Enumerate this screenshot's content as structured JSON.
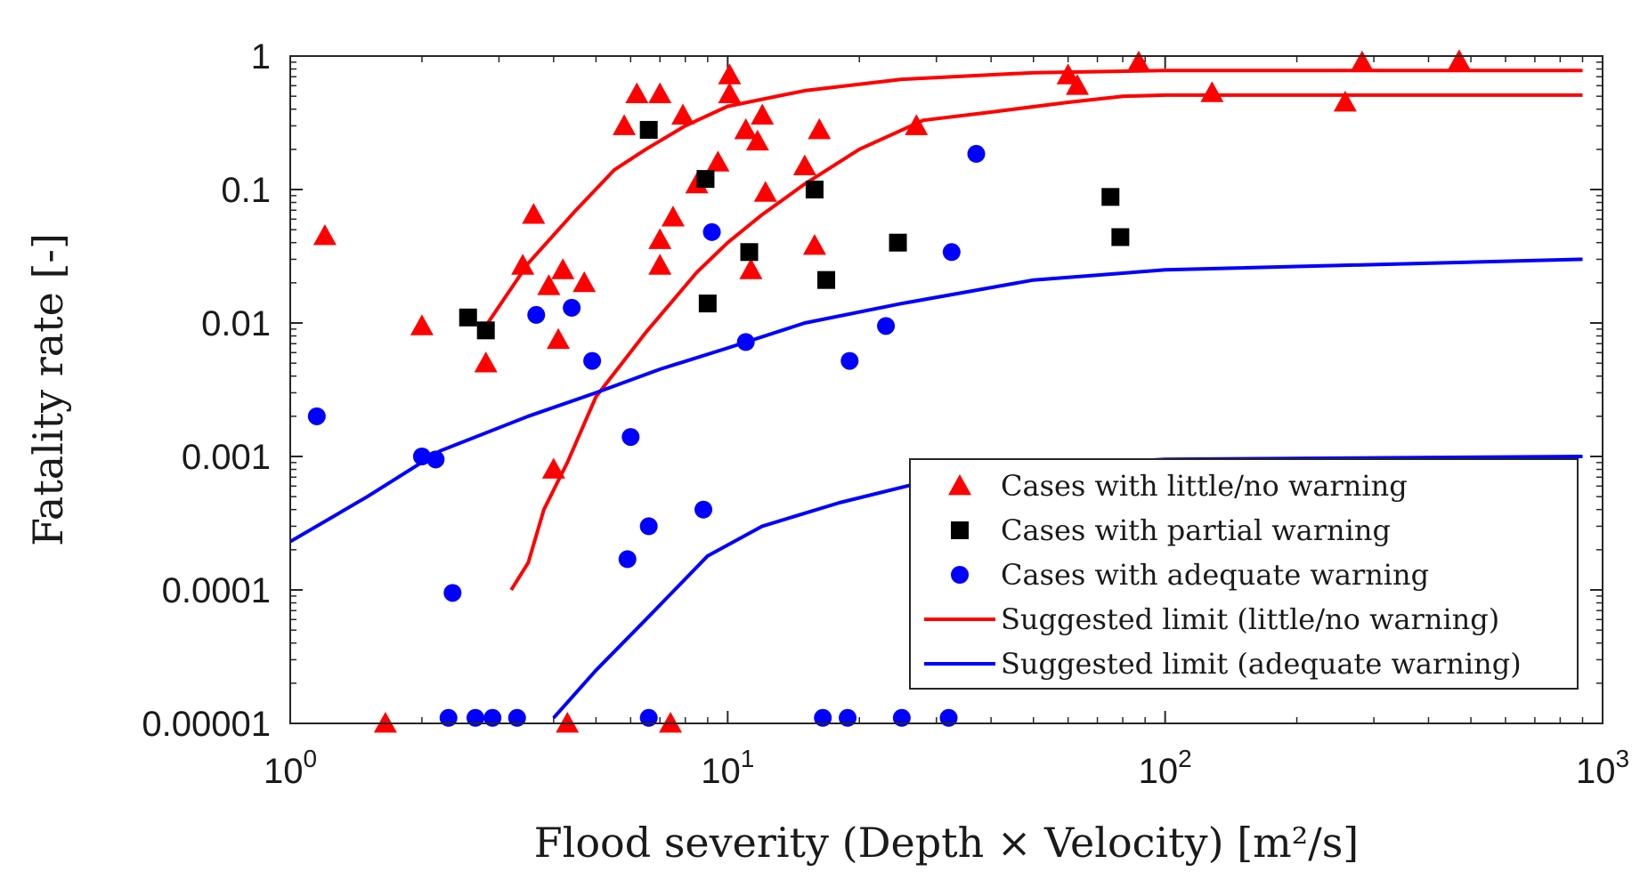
{
  "chart_data": {
    "type": "scatter",
    "xscale": "log",
    "yscale": "log",
    "xlim": [
      1,
      1000
    ],
    "ylim": [
      1e-05,
      1
    ],
    "xlabel": "Flood severity (Depth × Velocity) [m²/s]",
    "ylabel": "Fatality rate [-]",
    "x_ticks": [
      {
        "value": 1,
        "base": "10",
        "exp": "0"
      },
      {
        "value": 10,
        "base": "10",
        "exp": "1"
      },
      {
        "value": 100,
        "base": "10",
        "exp": "2"
      },
      {
        "value": 1000,
        "base": "10",
        "exp": "3"
      }
    ],
    "y_ticks": [
      {
        "value": 1,
        "label": "1"
      },
      {
        "value": 0.1,
        "label": "0.1"
      },
      {
        "value": 0.01,
        "label": "0.01"
      },
      {
        "value": 0.001,
        "label": "0.001"
      },
      {
        "value": 0.0001,
        "label": "0.0001"
      },
      {
        "value": 1e-05,
        "label": "0.00001"
      }
    ],
    "legend_position": "bottom-right",
    "series": [
      {
        "name": "Cases with little/no warning",
        "kind": "scatter",
        "marker": "triangle",
        "color": "#ff0000",
        "points": [
          [
            1.2,
            0.045
          ],
          [
            2.0,
            0.0095
          ],
          [
            2.8,
            0.005
          ],
          [
            3.4,
            0.027
          ],
          [
            3.6,
            0.065
          ],
          [
            3.9,
            0.019
          ],
          [
            4.1,
            0.0075
          ],
          [
            4.2,
            0.025
          ],
          [
            4.7,
            0.02
          ],
          [
            4.0,
            0.0008
          ],
          [
            5.8,
            0.3
          ],
          [
            6.2,
            0.52
          ],
          [
            7.0,
            0.52
          ],
          [
            7.9,
            0.36
          ],
          [
            7.5,
            0.062
          ],
          [
            7.0,
            0.042
          ],
          [
            7.0,
            0.027
          ],
          [
            8.5,
            0.11
          ],
          [
            9.5,
            0.16
          ],
          [
            10.1,
            0.72
          ],
          [
            10.1,
            0.52
          ],
          [
            11.0,
            0.28
          ],
          [
            12.0,
            0.36
          ],
          [
            11.7,
            0.23
          ],
          [
            11.3,
            0.025
          ],
          [
            12.2,
            0.095
          ],
          [
            15.0,
            0.15
          ],
          [
            15.8,
            0.038
          ],
          [
            16.2,
            0.28
          ],
          [
            27.0,
            0.3
          ],
          [
            60.0,
            0.72
          ],
          [
            63.0,
            0.6
          ],
          [
            87.0,
            0.9
          ],
          [
            128.0,
            0.53
          ],
          [
            258.0,
            0.45
          ],
          [
            282.0,
            0.9
          ],
          [
            470.0,
            0.92
          ],
          [
            1.65,
            1e-05
          ],
          [
            4.3,
            1e-05
          ],
          [
            7.4,
            1e-05
          ]
        ]
      },
      {
        "name": "Cases with partial warning",
        "kind": "scatter",
        "marker": "square",
        "color": "#000000",
        "points": [
          [
            2.55,
            0.011
          ],
          [
            2.8,
            0.0088
          ],
          [
            6.6,
            0.28
          ],
          [
            8.9,
            0.12
          ],
          [
            9.0,
            0.014
          ],
          [
            11.2,
            0.034
          ],
          [
            15.8,
            0.1
          ],
          [
            16.8,
            0.021
          ],
          [
            24.5,
            0.04
          ],
          [
            75.0,
            0.088
          ],
          [
            79.0,
            0.044
          ]
        ]
      },
      {
        "name": "Cases with adequate warning",
        "kind": "scatter",
        "marker": "circle",
        "color": "#0000ff",
        "points": [
          [
            1.15,
            0.002
          ],
          [
            2.0,
            0.001
          ],
          [
            2.15,
            0.00095
          ],
          [
            2.35,
            9.5e-05
          ],
          [
            3.65,
            0.0115
          ],
          [
            4.4,
            0.013
          ],
          [
            4.9,
            0.0052
          ],
          [
            6.0,
            0.0014
          ],
          [
            5.9,
            0.00017
          ],
          [
            6.6,
            0.0003
          ],
          [
            8.8,
            0.0004
          ],
          [
            9.2,
            0.048
          ],
          [
            11.0,
            0.0072
          ],
          [
            19.0,
            0.0052
          ],
          [
            23.0,
            0.0095
          ],
          [
            32.5,
            0.034
          ],
          [
            37.0,
            0.185
          ],
          [
            2.3,
            1.1e-05
          ],
          [
            2.65,
            1.1e-05
          ],
          [
            2.9,
            1.1e-05
          ],
          [
            3.3,
            1.1e-05
          ],
          [
            6.6,
            1.1e-05
          ],
          [
            16.5,
            1.1e-05
          ],
          [
            18.8,
            1.1e-05
          ],
          [
            25.0,
            1.1e-05
          ],
          [
            32.0,
            1.1e-05
          ]
        ]
      },
      {
        "name": "Suggested limit (little/no warning)",
        "kind": "line",
        "color": "#ff0000",
        "points": [
          [
            2.8,
            0.0095
          ],
          [
            3.5,
            0.028
          ],
          [
            4.5,
            0.07
          ],
          [
            5.5,
            0.14
          ],
          [
            6.5,
            0.2
          ],
          [
            8.0,
            0.3
          ],
          [
            10.0,
            0.42
          ],
          [
            15.0,
            0.55
          ],
          [
            25.0,
            0.67
          ],
          [
            50.0,
            0.75
          ],
          [
            100.0,
            0.78
          ],
          [
            900.0,
            0.78
          ]
        ]
      },
      {
        "name": "Suggested limit (little/no warning)",
        "kind": "line",
        "legend": false,
        "color": "#ff0000",
        "points": [
          [
            3.2,
            0.0001
          ],
          [
            3.5,
            0.00016
          ],
          [
            3.8,
            0.0004
          ],
          [
            4.3,
            0.0009
          ],
          [
            5.0,
            0.0028
          ],
          [
            6.5,
            0.0085
          ],
          [
            8.5,
            0.024
          ],
          [
            10.0,
            0.04
          ],
          [
            12.0,
            0.065
          ],
          [
            15.0,
            0.11
          ],
          [
            20.0,
            0.2
          ],
          [
            28.0,
            0.33
          ],
          [
            40.0,
            0.38
          ],
          [
            60.0,
            0.45
          ],
          [
            80.0,
            0.5
          ],
          [
            100.0,
            0.51
          ],
          [
            900.0,
            0.51
          ]
        ]
      },
      {
        "name": "Suggested limit (adequate warning)",
        "kind": "line",
        "color": "#0000ff",
        "points": [
          [
            1.0,
            0.00023
          ],
          [
            1.5,
            0.0005
          ],
          [
            2.2,
            0.0011
          ],
          [
            3.5,
            0.002
          ],
          [
            5.0,
            0.003
          ],
          [
            7.0,
            0.0045
          ],
          [
            10.0,
            0.0065
          ],
          [
            15.0,
            0.01
          ],
          [
            25.0,
            0.014
          ],
          [
            50.0,
            0.021
          ],
          [
            100.0,
            0.025
          ],
          [
            900.0,
            0.03
          ]
        ]
      },
      {
        "name": "Suggested limit (adequate warning)",
        "kind": "line",
        "legend": false,
        "color": "#0000ff",
        "points": [
          [
            4.0,
            1.1e-05
          ],
          [
            5.0,
            2.5e-05
          ],
          [
            6.5,
            6e-05
          ],
          [
            9.0,
            0.00018
          ],
          [
            12.0,
            0.0003
          ],
          [
            18.0,
            0.00045
          ],
          [
            30.0,
            0.00068
          ],
          [
            50.0,
            0.00085
          ],
          [
            100.0,
            0.00095
          ],
          [
            900.0,
            0.001
          ]
        ]
      }
    ]
  }
}
